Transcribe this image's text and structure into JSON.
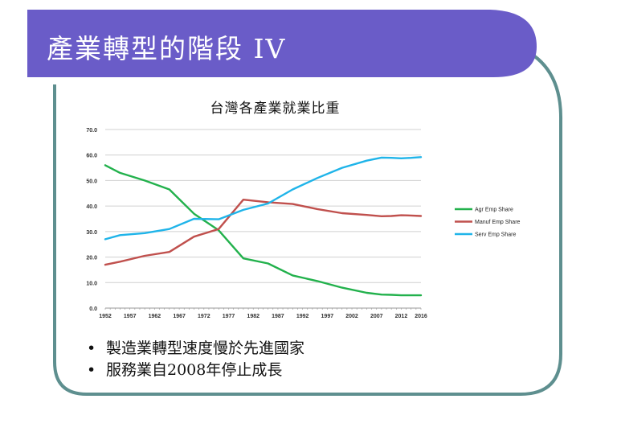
{
  "slide": {
    "title": "產業轉型的階段 IV",
    "bullets": [
      "製造業轉型速度慢於先進國家",
      "服務業自2008年停止成長"
    ],
    "bullet_symbol": "•"
  },
  "colors": {
    "title_band": "#6a5cc8",
    "frame_border": "#5e8f8f",
    "agr": "#22b14c",
    "manuf": "#c0504d",
    "serv": "#1fb4e9"
  },
  "chart_data": {
    "type": "line",
    "title": "台灣各產業就業比重",
    "xlabel": "",
    "ylabel": "",
    "ylim": [
      0,
      70
    ],
    "yticks": [
      "0.0",
      "10.0",
      "20.0",
      "30.0",
      "40.0",
      "50.0",
      "60.0",
      "70.0"
    ],
    "xlim": [
      1952,
      2016
    ],
    "xticks": [
      "1952",
      "1957",
      "1962",
      "1967",
      "1972",
      "1977",
      "1982",
      "1987",
      "1992",
      "1997",
      "2002",
      "2007",
      "2012",
      "2016"
    ],
    "grid": true,
    "legend": "right",
    "x": [
      1952,
      1955,
      1960,
      1965,
      1970,
      1975,
      1980,
      1985,
      1990,
      1995,
      2000,
      2005,
      2008,
      2010,
      2012,
      2014,
      2016
    ],
    "series": [
      {
        "name": "Agr Emp Share",
        "color": "#22b14c",
        "values": [
          56.0,
          53.0,
          50.0,
          46.5,
          37.0,
          30.5,
          19.5,
          17.5,
          12.8,
          10.6,
          8.0,
          6.0,
          5.3,
          5.2,
          5.0,
          5.0,
          5.0
        ]
      },
      {
        "name": "Manuf Emp Share",
        "color": "#c0504d",
        "values": [
          17.0,
          18.2,
          20.5,
          22.0,
          28.0,
          31.0,
          42.5,
          41.5,
          40.8,
          38.8,
          37.2,
          36.5,
          36.0,
          36.1,
          36.4,
          36.3,
          36.1
        ]
      },
      {
        "name": "Serv Emp Share",
        "color": "#1fb4e9",
        "values": [
          27.0,
          28.6,
          29.4,
          31.0,
          35.0,
          34.8,
          38.5,
          41.0,
          46.5,
          51.0,
          55.0,
          57.8,
          59.0,
          58.9,
          58.7,
          58.9,
          59.2
        ]
      }
    ]
  }
}
